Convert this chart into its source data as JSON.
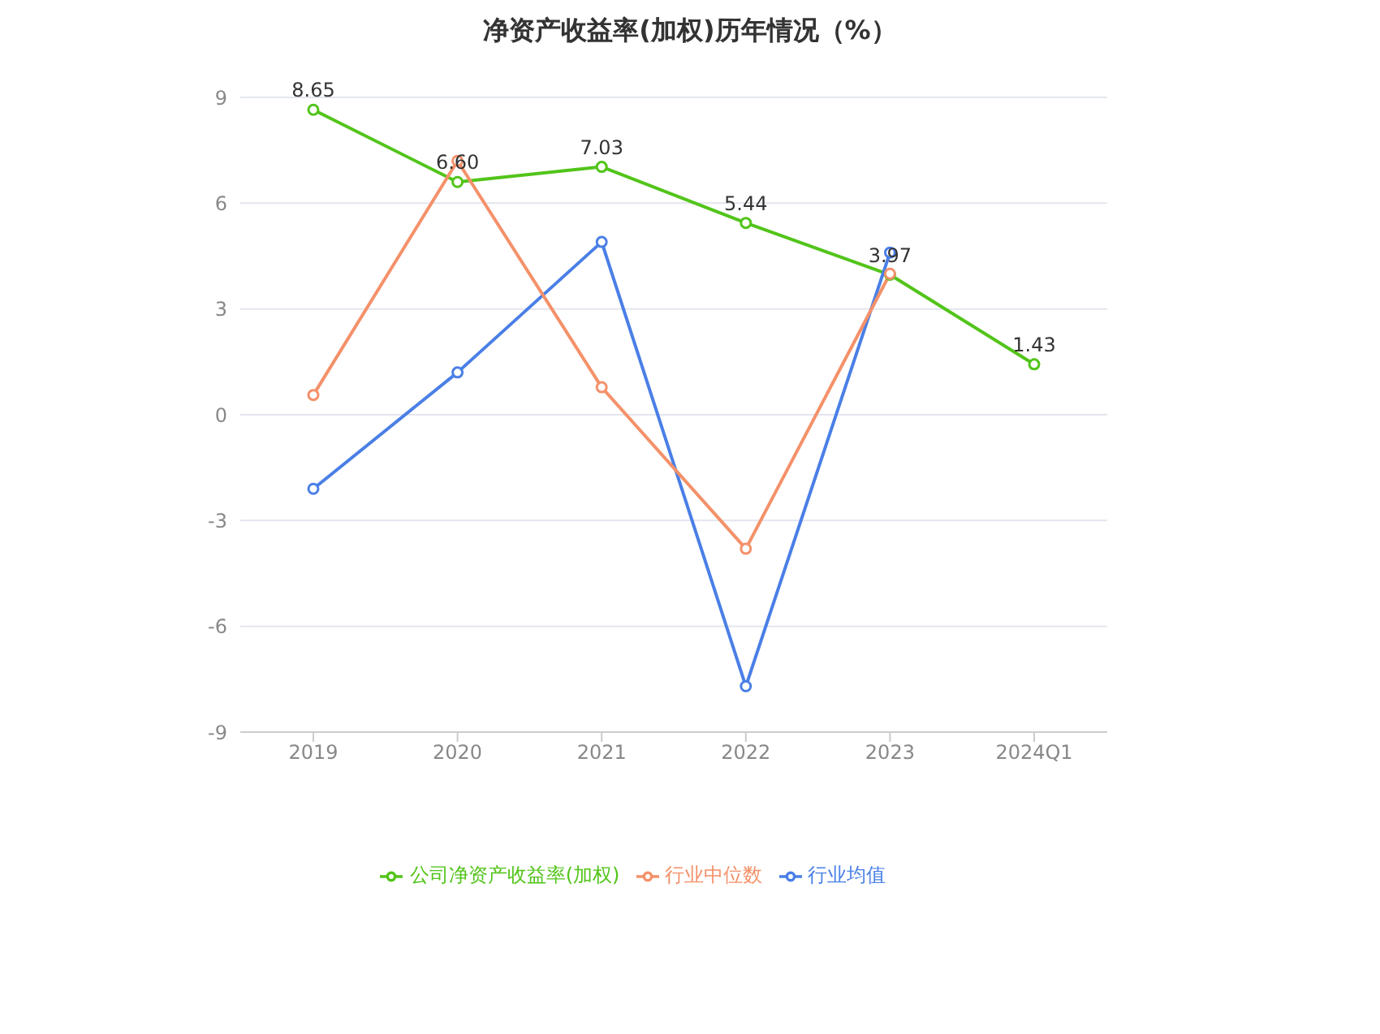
{
  "chart_data": {
    "type": "line",
    "title": "净资产收益率(加权)历年情况（%）",
    "categories": [
      "2019",
      "2020",
      "2021",
      "2022",
      "2023",
      "2024Q1"
    ],
    "series": [
      {
        "name": "公司净资产收益率(加权)",
        "color": "#52c41a",
        "values": [
          8.65,
          6.6,
          7.03,
          5.44,
          3.97,
          1.43
        ],
        "value_labels": [
          "8.65",
          "6.60",
          "7.03",
          "5.44",
          "3.97",
          "1.43"
        ]
      },
      {
        "name": "行业均值",
        "color": "#4a7fe6",
        "values": [
          -2.1,
          1.2,
          4.9,
          -7.7,
          4.6,
          null
        ]
      },
      {
        "name": "行业中位数",
        "color": "#f4916a",
        "values": [
          0.56,
          7.2,
          0.78,
          -3.8,
          4.0,
          null
        ]
      }
    ],
    "ylim": [
      -9,
      9
    ],
    "yticks": [
      -9,
      -6,
      -3,
      0,
      3,
      6,
      9
    ],
    "grid": "y",
    "legend": "bottom",
    "marker": "circle",
    "line_style": "solid"
  }
}
